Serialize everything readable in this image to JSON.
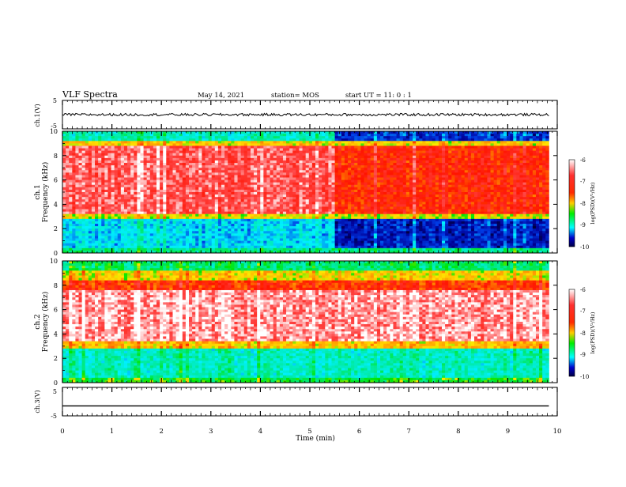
{
  "header": {
    "title": "VLF Spectra",
    "date": "May 14, 2021",
    "station": "station= MOS",
    "start": "start  UT =   11: 0  : 1"
  },
  "panels": {
    "ch1_waveform": {
      "ylabel": "ch.1(V)",
      "ticks": [
        "5",
        "-5"
      ]
    },
    "ch1_spectrogram": {
      "ylabel_line1": "ch.1",
      "ylabel_line2": "Frequency (kHz)"
    },
    "ch2_spectrogram": {
      "ylabel_line1": "ch.2",
      "ylabel_line2": "Frequency (kHz)"
    },
    "ch3_waveform": {
      "ylabel": "ch.3(V)",
      "ticks": [
        "5",
        "-5"
      ]
    }
  },
  "colorbar": {
    "label": "log(PSD)(V²/Hz)",
    "ticks": [
      "-6",
      "-7",
      "-8",
      "-9",
      "-10"
    ],
    "colors": [
      "#ffffff",
      "#ff0000",
      "#ffcc00",
      "#00ee00",
      "#00ffff",
      "#0000cc",
      "#000044"
    ]
  },
  "xaxis": {
    "label": "Time  (min)",
    "ticks": [
      "0",
      "1",
      "2",
      "3",
      "4",
      "5",
      "6",
      "7",
      "8",
      "9",
      "10"
    ]
  },
  "chart_data": [
    {
      "type": "line",
      "title": "VLF Spectra",
      "ylabel": "ch.1(V)",
      "xlabel": "Time  (min)",
      "xlim": [
        0,
        10
      ],
      "ylim": [
        -5,
        5
      ],
      "series": [
        {
          "x": [
            0,
            9.83
          ],
          "values": [
            0,
            0
          ]
        }
      ]
    },
    {
      "type": "heatmap",
      "ylabel": "ch.1 Frequency (kHz)",
      "xlim": [
        0,
        10
      ],
      "ylim": [
        0,
        10
      ],
      "yticks": [
        0,
        2,
        4,
        6,
        8,
        10
      ],
      "data_end_min": 9.83,
      "color_range_log_psd": [
        -10,
        -6
      ],
      "bands_khz": [
        {
          "from": 0,
          "to": 0.5,
          "level": -8.5
        },
        {
          "from": 0.5,
          "to": 2.8,
          "level": -9.0,
          "level_after_5_5_min": -9.6
        },
        {
          "from": 2.8,
          "to": 3.3,
          "level": -7.8
        },
        {
          "from": 3.3,
          "to": 8.8,
          "level": -6.4,
          "level_after_5_5_min": -6.9
        },
        {
          "from": 8.8,
          "to": 9.3,
          "level": -7.7
        },
        {
          "from": 9.3,
          "to": 10,
          "level": -8.7,
          "level_after_5_5_min": -9.5
        }
      ]
    },
    {
      "type": "heatmap",
      "ylabel": "ch.2 Frequency (kHz)",
      "xlim": [
        0,
        10
      ],
      "ylim": [
        0,
        10
      ],
      "yticks": [
        0,
        2,
        4,
        6,
        8,
        10
      ],
      "data_end_min": 9.83,
      "color_range_log_psd": [
        -10,
        -6
      ],
      "bands_khz": [
        {
          "from": 0,
          "to": 0.5,
          "level": -8.2
        },
        {
          "from": 0.5,
          "to": 2.7,
          "level": -8.7
        },
        {
          "from": 2.7,
          "to": 3.4,
          "level": -7.6
        },
        {
          "from": 3.4,
          "to": 7.6,
          "level": -6.2
        },
        {
          "from": 7.6,
          "to": 8.4,
          "level": -7.0
        },
        {
          "from": 8.4,
          "to": 9.2,
          "level": -7.7
        },
        {
          "from": 9.2,
          "to": 10,
          "level": -8.4
        }
      ]
    },
    {
      "type": "line",
      "ylabel": "ch.3(V)",
      "xlabel": "Time  (min)",
      "xlim": [
        0,
        10
      ],
      "ylim": [
        -5,
        5
      ],
      "series": [
        {
          "x": [
            0,
            9.83
          ],
          "values": [
            -1.5,
            -1.5
          ]
        }
      ]
    }
  ]
}
